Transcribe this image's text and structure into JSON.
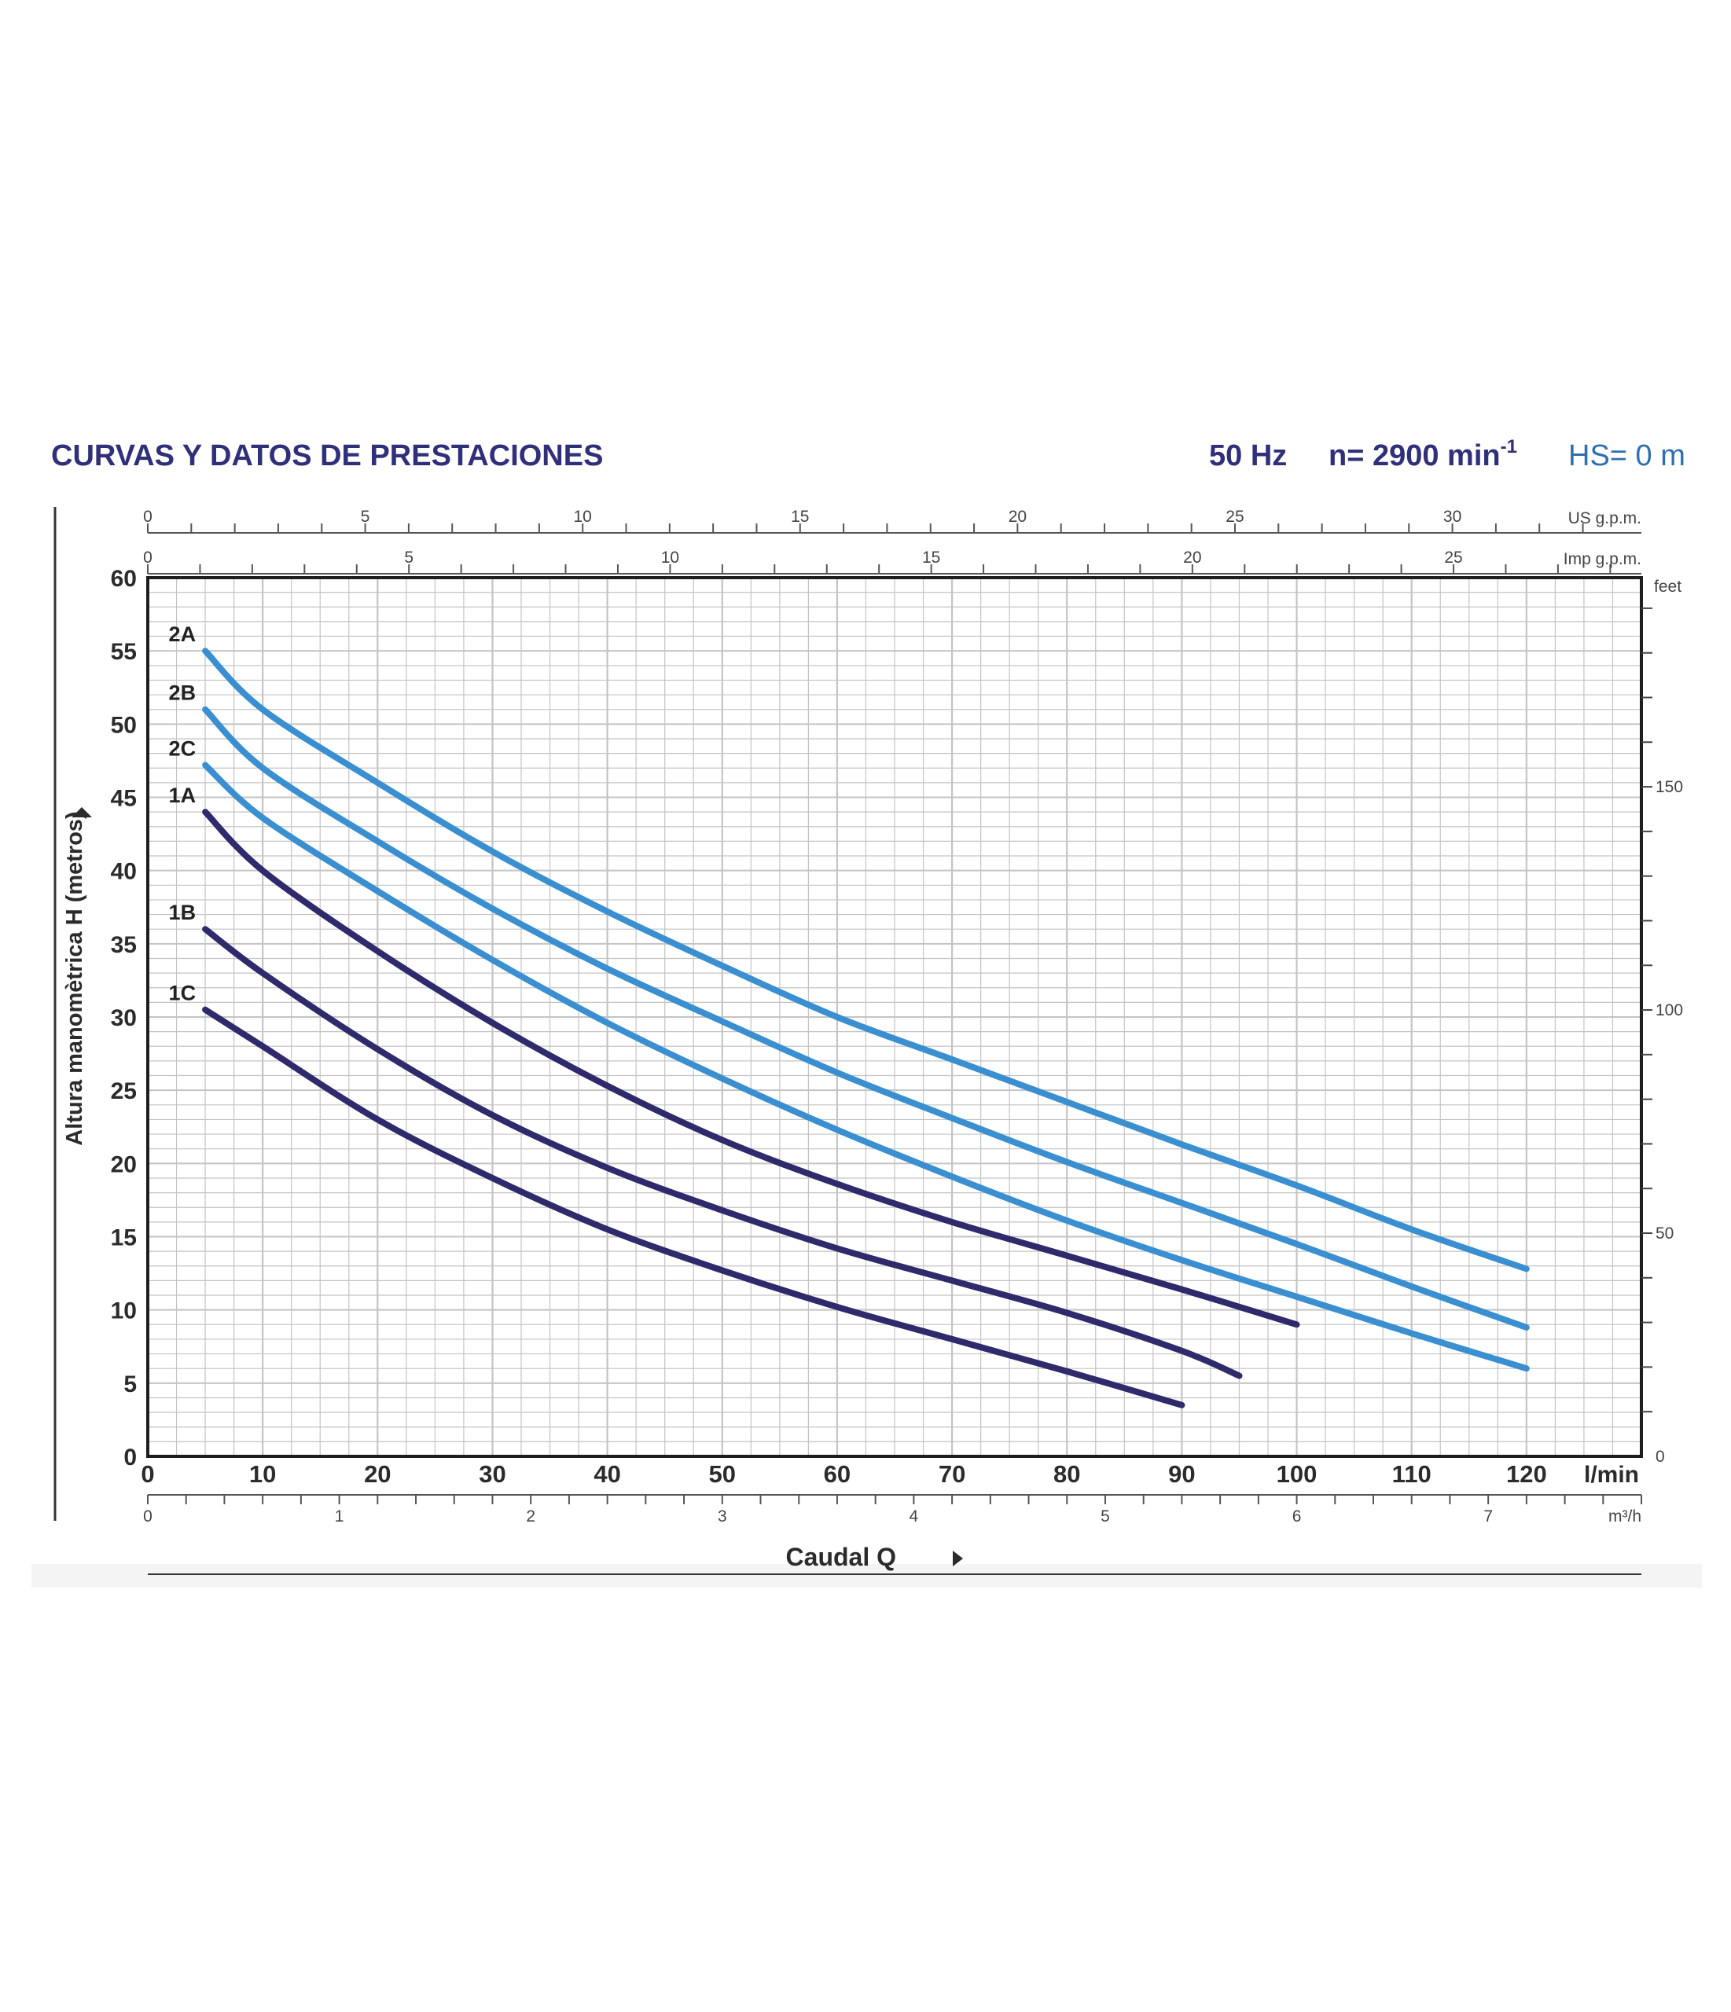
{
  "header": {
    "title": "CURVAS Y DATOS DE PRESTACIONES",
    "freq": "50 Hz",
    "speed": "n= 2900 min",
    "speed_exp": "-1",
    "hs": "HS= 0 m"
  },
  "colors": {
    "navy": "#2e2a6b",
    "light_blue": "#3a8fd1",
    "grid": "#c4c4c4",
    "text": "#2b2b2b"
  },
  "chart_data": {
    "type": "line",
    "title": "CURVAS Y DATOS DE PRESTACIONES",
    "xlabel": "Caudal Q",
    "ylabel": "Altura manomètrica H  (metros)",
    "xlim": [
      0,
      130
    ],
    "ylim": [
      0,
      60
    ],
    "grid": true,
    "x_unit": "l/min",
    "x_ticks": [
      "0",
      "10",
      "20",
      "30",
      "40",
      "50",
      "60",
      "70",
      "80",
      "90",
      "100",
      "110",
      "120"
    ],
    "y_ticks": [
      "0",
      "5",
      "10",
      "15",
      "20",
      "25",
      "30",
      "35",
      "40",
      "45",
      "50",
      "55",
      "60"
    ],
    "axes": {
      "us_gpm": {
        "label": "US g.p.m.",
        "ticks": [
          "0",
          "5",
          "10",
          "15",
          "20",
          "25",
          "30"
        ]
      },
      "imp_gpm": {
        "label": "Imp g.p.m.",
        "ticks": [
          "0",
          "5",
          "10",
          "15",
          "20",
          "25"
        ]
      },
      "m3h": {
        "label": "m³/h",
        "ticks": [
          "0",
          "1",
          "2",
          "3",
          "4",
          "5",
          "6",
          "7"
        ]
      },
      "feet": {
        "label": "feet",
        "ticks": [
          "0",
          "50",
          "100",
          "150"
        ]
      }
    },
    "series": [
      {
        "name": "2A",
        "color": "light",
        "x": [
          5,
          10,
          20,
          30,
          40,
          50,
          60,
          70,
          80,
          90,
          100,
          110,
          120
        ],
        "y": [
          55,
          51,
          46,
          41.3,
          37.2,
          33.5,
          30,
          27.1,
          24.2,
          21.3,
          18.5,
          15.5,
          12.8
        ]
      },
      {
        "name": "2B",
        "color": "light",
        "x": [
          5,
          10,
          20,
          30,
          40,
          50,
          60,
          70,
          80,
          90,
          100,
          110,
          120
        ],
        "y": [
          51,
          47,
          42,
          37.4,
          33.3,
          29.7,
          26.2,
          23.1,
          20.1,
          17.3,
          14.5,
          11.6,
          8.8
        ]
      },
      {
        "name": "2C",
        "color": "light",
        "x": [
          5,
          10,
          20,
          30,
          40,
          50,
          60,
          70,
          80,
          90,
          100,
          110,
          120
        ],
        "y": [
          47.2,
          43.6,
          38.6,
          33.9,
          29.6,
          25.8,
          22.3,
          19.1,
          16.1,
          13.4,
          10.9,
          8.4,
          6
        ]
      },
      {
        "name": "1A",
        "color": "navy",
        "x": [
          5,
          10,
          20,
          30,
          40,
          50,
          60,
          70,
          80,
          90,
          100
        ],
        "y": [
          44,
          40,
          34.5,
          29.6,
          25.3,
          21.6,
          18.6,
          16,
          13.7,
          11.4,
          9
        ]
      },
      {
        "name": "1B",
        "color": "navy",
        "x": [
          5,
          10,
          20,
          30,
          40,
          50,
          60,
          70,
          80,
          90,
          95
        ],
        "y": [
          36,
          33,
          27.8,
          23.3,
          19.7,
          16.8,
          14.2,
          12,
          9.8,
          7.2,
          5.5
        ]
      },
      {
        "name": "1C",
        "color": "navy",
        "x": [
          5,
          10,
          20,
          30,
          40,
          50,
          60,
          70,
          80,
          90
        ],
        "y": [
          30.5,
          28,
          23,
          19,
          15.5,
          12.7,
          10.2,
          8,
          5.8,
          3.5
        ]
      }
    ]
  }
}
